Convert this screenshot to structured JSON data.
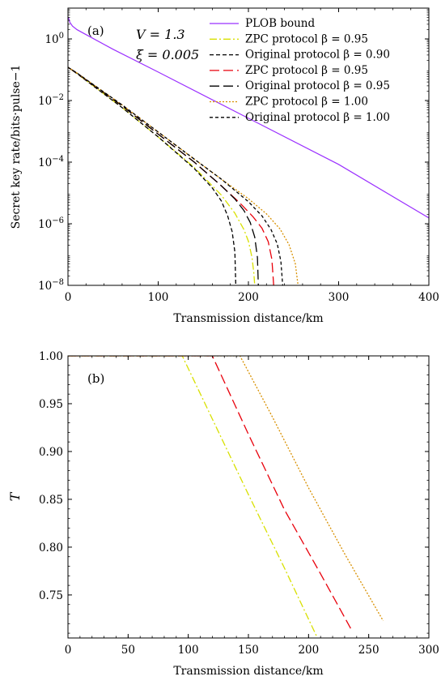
{
  "chart_data": [
    {
      "type": "line",
      "panel_label": "(a)",
      "xlabel": "Transmission distance/km",
      "ylabel": "Secret key rate/bits·pulse−1",
      "xlim": [
        0,
        400
      ],
      "ylim": [
        1e-08,
        10
      ],
      "yscale": "log",
      "xticks": [
        0,
        100,
        200,
        300,
        400
      ],
      "xtick_labels": [
        "0",
        "100",
        "200",
        "300",
        "400"
      ],
      "yticks": [
        1,
        0.01,
        0.0001,
        1e-06,
        1e-08
      ],
      "ytick_labels": [
        {
          "base": "10",
          "exp": "0"
        },
        {
          "base": "10",
          "exp": "−2"
        },
        {
          "base": "10",
          "exp": "−4"
        },
        {
          "base": "10",
          "exp": "−6"
        },
        {
          "base": "10",
          "exp": "−8"
        }
      ],
      "annotations": [
        "V = 1.3",
        "ξ = 0.005"
      ],
      "legend_position": "top-right",
      "colors": {
        "plob": "#9b30ff",
        "yellow": "#d8e000",
        "black": "#000000",
        "red": "#e8000b",
        "orange": "#d89000"
      },
      "series": [
        {
          "name": "PLOB bound",
          "style": "solid",
          "color": "#9b30ff",
          "x": [
            0.5,
            2,
            5,
            10,
            20,
            50,
            100,
            200,
            300,
            400
          ],
          "y": [
            5,
            3.5,
            2.6,
            2.0,
            1.38,
            0.46,
            0.084,
            0.00266,
            8.43e-05,
            1.54e-06
          ]
        },
        {
          "name": "ZPC protocol β = 0.95",
          "style": "dashdot",
          "color": "#d8e000",
          "x": [
            0,
            10,
            30,
            60,
            100,
            140,
            170,
            185,
            195,
            200,
            204,
            206,
            207
          ],
          "y": [
            0.12,
            0.075,
            0.027,
            0.0059,
            0.00066,
            6.7e-05,
            8.5e-06,
            2.2e-06,
            6.5e-07,
            2.7e-07,
            8e-08,
            2.5e-08,
            1e-08
          ]
        },
        {
          "name": "Original protocol β = 0.90",
          "style": "dashed",
          "color": "#000000",
          "x": [
            0,
            10,
            30,
            60,
            100,
            140,
            160,
            170,
            177,
            182,
            185,
            186
          ],
          "y": [
            0.12,
            0.075,
            0.027,
            0.0059,
            0.00066,
            6.2e-05,
            1.45e-05,
            5.5e-06,
            1.8e-06,
            5.5e-07,
            1.2e-07,
            1e-08
          ]
        },
        {
          "name": "ZPC protocol β = 0.95",
          "style": "longdash",
          "color": "#e8000b",
          "x": [
            0,
            10,
            30,
            60,
            100,
            140,
            170,
            190,
            205,
            215,
            222,
            226,
            228
          ],
          "y": [
            0.12,
            0.077,
            0.029,
            0.0067,
            0.00081,
            0.0001,
            1.7e-05,
            4.9e-06,
            1.7e-06,
            7.2e-07,
            2.6e-07,
            7e-08,
            1e-08
          ]
        },
        {
          "name": "Original protocol β = 0.95",
          "style": "longdash",
          "color": "#000000",
          "x": [
            0,
            10,
            30,
            60,
            100,
            140,
            170,
            185,
            195,
            202,
            207,
            210,
            211
          ],
          "y": [
            0.12,
            0.077,
            0.029,
            0.0067,
            0.00081,
            0.0001,
            1.7e-05,
            6.4e-06,
            2.7e-06,
            1.1e-06,
            3.7e-07,
            8e-08,
            1e-08
          ]
        },
        {
          "name": "ZPC protocol β = 1.00",
          "style": "dotted",
          "color": "#d89000",
          "x": [
            0,
            10,
            30,
            60,
            100,
            140,
            170,
            200,
            220,
            235,
            245,
            252,
            255
          ],
          "y": [
            0.12,
            0.078,
            0.03,
            0.0072,
            0.00095,
            0.000125,
            2.8e-05,
            6.5e-06,
            2.1e-06,
            6.8e-07,
            2.1e-07,
            5e-08,
            1e-08
          ]
        },
        {
          "name": "Original protocol β = 1.00",
          "style": "shortdash",
          "color": "#000000",
          "x": [
            0,
            10,
            30,
            60,
            100,
            140,
            170,
            200,
            215,
            225,
            232,
            236,
            238
          ],
          "y": [
            0.12,
            0.078,
            0.03,
            0.0072,
            0.00095,
            0.000125,
            2.8e-05,
            5.2e-06,
            1.8e-06,
            6.5e-07,
            2.2e-07,
            6e-08,
            1e-08
          ]
        }
      ]
    },
    {
      "type": "line",
      "panel_label": "(b)",
      "xlabel": "Transmission distance/km",
      "ylabel": "T",
      "xlim": [
        0,
        300
      ],
      "ylim": [
        0.705,
        1.0
      ],
      "xticks": [
        0,
        50,
        100,
        150,
        200,
        250,
        300
      ],
      "xtick_labels": [
        "0",
        "50",
        "100",
        "150",
        "200",
        "250",
        "300"
      ],
      "yticks": [
        0.75,
        0.8,
        0.85,
        0.9,
        0.95,
        1.0
      ],
      "ytick_labels": [
        "0.75",
        "0.80",
        "0.85",
        "0.90",
        "0.95",
        "1.00"
      ],
      "series": [
        {
          "style": "dashdot",
          "color": "#d8e000",
          "x": [
            0,
            95,
            120,
            150,
            180,
            207
          ],
          "y": [
            1.0,
            1.0,
            0.934,
            0.855,
            0.778,
            0.706
          ]
        },
        {
          "style": "longdash",
          "color": "#e8000b",
          "x": [
            0,
            120,
            150,
            180,
            210,
            235
          ],
          "y": [
            1.0,
            1.0,
            0.918,
            0.839,
            0.772,
            0.715
          ]
        },
        {
          "style": "dotted",
          "color": "#d89000",
          "x": [
            0,
            143,
            170,
            200,
            230,
            262
          ],
          "y": [
            1.0,
            1.0,
            0.936,
            0.862,
            0.793,
            0.723
          ]
        }
      ]
    }
  ]
}
